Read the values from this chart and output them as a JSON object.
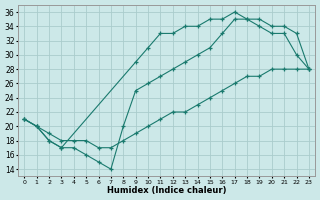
{
  "xlabel": "Humidex (Indice chaleur)",
  "xlim": [
    -0.5,
    23.5
  ],
  "ylim": [
    13,
    37
  ],
  "yticks": [
    14,
    16,
    18,
    20,
    22,
    24,
    26,
    28,
    30,
    32,
    34,
    36
  ],
  "xticks": [
    0,
    1,
    2,
    3,
    4,
    5,
    6,
    7,
    8,
    9,
    10,
    11,
    12,
    13,
    14,
    15,
    16,
    17,
    18,
    19,
    20,
    21,
    22,
    23
  ],
  "background_color": "#cce8e8",
  "grid_color": "#aacccc",
  "line_color": "#1a7a6e",
  "line1_x": [
    0,
    1,
    2,
    3,
    9,
    10,
    11,
    12,
    13,
    14,
    15,
    16,
    17,
    18,
    19,
    20,
    21,
    22,
    23
  ],
  "line1_y": [
    21,
    20,
    18,
    17,
    29,
    31,
    33,
    33,
    34,
    34,
    35,
    35,
    36,
    35,
    34,
    33,
    33,
    30,
    28
  ],
  "line2_x": [
    0,
    1,
    2,
    3,
    4,
    5,
    6,
    7,
    8,
    9,
    10,
    11,
    12,
    13,
    14,
    15,
    16,
    17,
    18,
    19,
    20,
    21,
    22,
    23
  ],
  "line2_y": [
    21,
    20,
    18,
    17,
    17,
    16,
    15,
    14,
    20,
    25,
    26,
    27,
    28,
    29,
    30,
    31,
    33,
    35,
    35,
    35,
    34,
    34,
    33,
    28
  ],
  "line3_x": [
    0,
    1,
    2,
    3,
    4,
    5,
    6,
    7,
    8,
    9,
    10,
    11,
    12,
    13,
    14,
    15,
    16,
    17,
    18,
    19,
    20,
    21,
    22,
    23
  ],
  "line3_y": [
    21,
    20,
    19,
    18,
    18,
    18,
    17,
    17,
    18,
    19,
    20,
    21,
    22,
    22,
    23,
    24,
    25,
    26,
    27,
    27,
    28,
    28,
    28,
    28
  ]
}
